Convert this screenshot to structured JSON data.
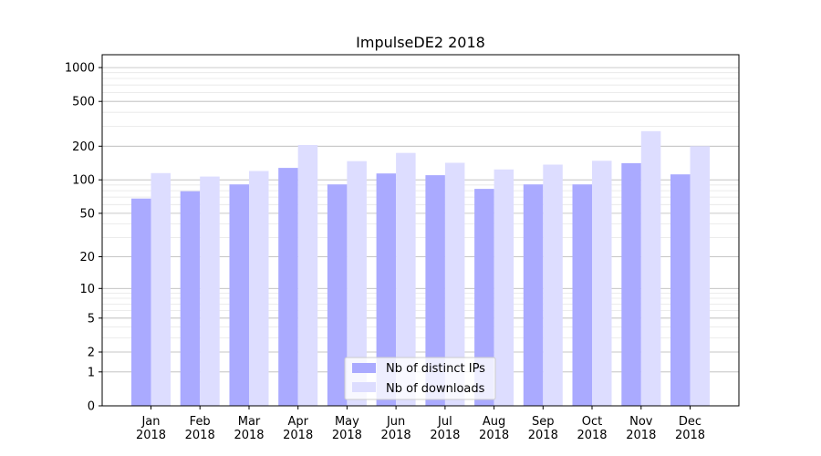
{
  "chart_data": {
    "type": "bar",
    "title": "ImpulseDE2 2018",
    "xlabel": "",
    "ylabel": "",
    "categories": [
      "Jan\n2018",
      "Feb\n2018",
      "Mar\n2018",
      "Apr\n2018",
      "May\n2018",
      "Jun\n2018",
      "Jul\n2018",
      "Aug\n2018",
      "Sep\n2018",
      "Oct\n2018",
      "Nov\n2018",
      "Dec\n2018"
    ],
    "series": [
      {
        "name": "Nb of distinct IPs",
        "color": "#aaaaff",
        "values": [
          68,
          79,
          91,
          128,
          91,
          114,
          110,
          83,
          91,
          91,
          141,
          112
        ]
      },
      {
        "name": "Nb of downloads",
        "color": "#ddddff",
        "values": [
          115,
          107,
          120,
          205,
          147,
          174,
          142,
          124,
          137,
          148,
          272,
          200
        ]
      }
    ],
    "yscale": "symlog",
    "yticks": [
      0,
      1,
      2,
      5,
      10,
      20,
      50,
      100,
      200,
      500,
      1000
    ],
    "ytick_labels": [
      "0",
      "1",
      "2",
      "5",
      "10",
      "20",
      "50",
      "100",
      "200",
      "500",
      "1000"
    ],
    "ylim": [
      0,
      1300
    ],
    "grid": true,
    "legend_position": "bottom-center"
  }
}
